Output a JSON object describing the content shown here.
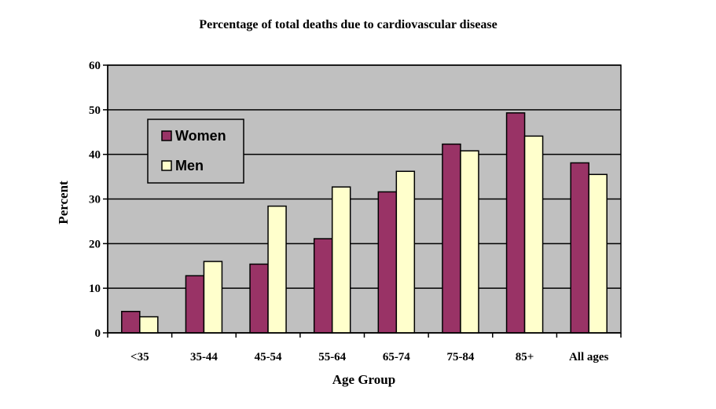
{
  "chart_data": {
    "type": "bar",
    "title": "Percentage of total deaths due to cardiovascular disease",
    "xlabel": "Age Group",
    "ylabel": "Percent",
    "ylim": [
      0,
      60
    ],
    "yticks": [
      0,
      10,
      20,
      30,
      40,
      50,
      60
    ],
    "grid": true,
    "legend_placement": "top-left",
    "categories": [
      "<35",
      "35-44",
      "45-54",
      "55-64",
      "65-74",
      "75-84",
      "85+",
      "All ages"
    ],
    "series": [
      {
        "name": "Women",
        "color": "#993366",
        "values": [
          4.8,
          12.8,
          15.4,
          21.1,
          31.6,
          42.3,
          49.3,
          38.1
        ]
      },
      {
        "name": "Men",
        "color": "#FFFFCC",
        "values": [
          3.6,
          16.0,
          28.4,
          32.7,
          36.2,
          40.8,
          44.1,
          35.5
        ]
      }
    ],
    "plot_background": "#C0C0C0"
  }
}
